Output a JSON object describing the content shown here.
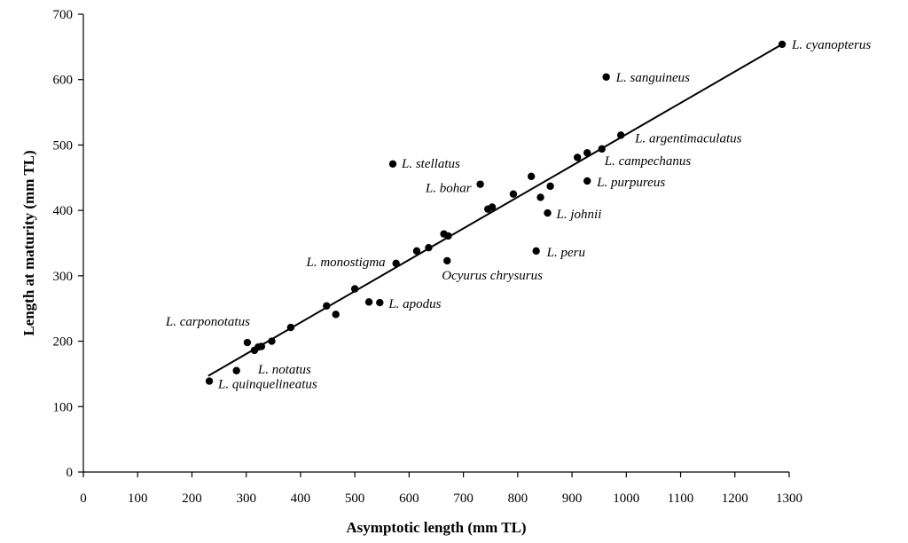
{
  "chart_data": {
    "type": "scatter",
    "xlabel": "Asymptotic length (mm TL)",
    "ylabel": "Length at maturity (mm TL)",
    "xlim": [
      0,
      1300
    ],
    "ylim": [
      0,
      700
    ],
    "x_ticks": [
      0,
      100,
      200,
      300,
      400,
      500,
      600,
      700,
      800,
      900,
      1000,
      1100,
      1200,
      1300
    ],
    "y_ticks": [
      0,
      100,
      200,
      300,
      400,
      500,
      600,
      700
    ],
    "grid": false,
    "legend": "none",
    "marker_color": "#000000",
    "points": [
      {
        "x": 232,
        "y": 139,
        "label": "L. quinquelineatus"
      },
      {
        "x": 282,
        "y": 155,
        "label": ""
      },
      {
        "x": 302,
        "y": 198,
        "label": "L. carponotatus"
      },
      {
        "x": 315,
        "y": 186,
        "label": "L. notatus"
      },
      {
        "x": 322,
        "y": 191,
        "label": ""
      },
      {
        "x": 328,
        "y": 192,
        "label": ""
      },
      {
        "x": 347,
        "y": 200,
        "label": ""
      },
      {
        "x": 382,
        "y": 221,
        "label": ""
      },
      {
        "x": 448,
        "y": 254,
        "label": ""
      },
      {
        "x": 465,
        "y": 241,
        "label": ""
      },
      {
        "x": 500,
        "y": 280,
        "label": ""
      },
      {
        "x": 526,
        "y": 260,
        "label": ""
      },
      {
        "x": 546,
        "y": 259,
        "label": "L. apodus"
      },
      {
        "x": 576,
        "y": 319,
        "label": "L. monostigma"
      },
      {
        "x": 614,
        "y": 338,
        "label": ""
      },
      {
        "x": 636,
        "y": 343,
        "label": ""
      },
      {
        "x": 664,
        "y": 364,
        "label": ""
      },
      {
        "x": 672,
        "y": 361,
        "label": ""
      },
      {
        "x": 670,
        "y": 323,
        "label": "Ocyurus chrysurus"
      },
      {
        "x": 570,
        "y": 471,
        "label": "L. stellatus"
      },
      {
        "x": 731,
        "y": 440,
        "label": "L. bohar"
      },
      {
        "x": 745,
        "y": 402,
        "label": ""
      },
      {
        "x": 753,
        "y": 405,
        "label": ""
      },
      {
        "x": 792,
        "y": 425,
        "label": ""
      },
      {
        "x": 825,
        "y": 452,
        "label": ""
      },
      {
        "x": 842,
        "y": 420,
        "label": ""
      },
      {
        "x": 860,
        "y": 437,
        "label": ""
      },
      {
        "x": 855,
        "y": 396,
        "label": "L. johnii"
      },
      {
        "x": 834,
        "y": 338,
        "label": "L. peru"
      },
      {
        "x": 910,
        "y": 481,
        "label": ""
      },
      {
        "x": 928,
        "y": 488,
        "label": ""
      },
      {
        "x": 955,
        "y": 494,
        "label": "L. campechanus"
      },
      {
        "x": 928,
        "y": 445,
        "label": "L. purpureus"
      },
      {
        "x": 990,
        "y": 515,
        "label": "L. argentimaculatus"
      },
      {
        "x": 963,
        "y": 604,
        "label": "L. sanguineus"
      },
      {
        "x": 1287,
        "y": 654,
        "label": "L. cyanopterus"
      }
    ],
    "regression_line": {
      "x": [
        230,
        1287
      ],
      "y": [
        147,
        654
      ]
    }
  }
}
